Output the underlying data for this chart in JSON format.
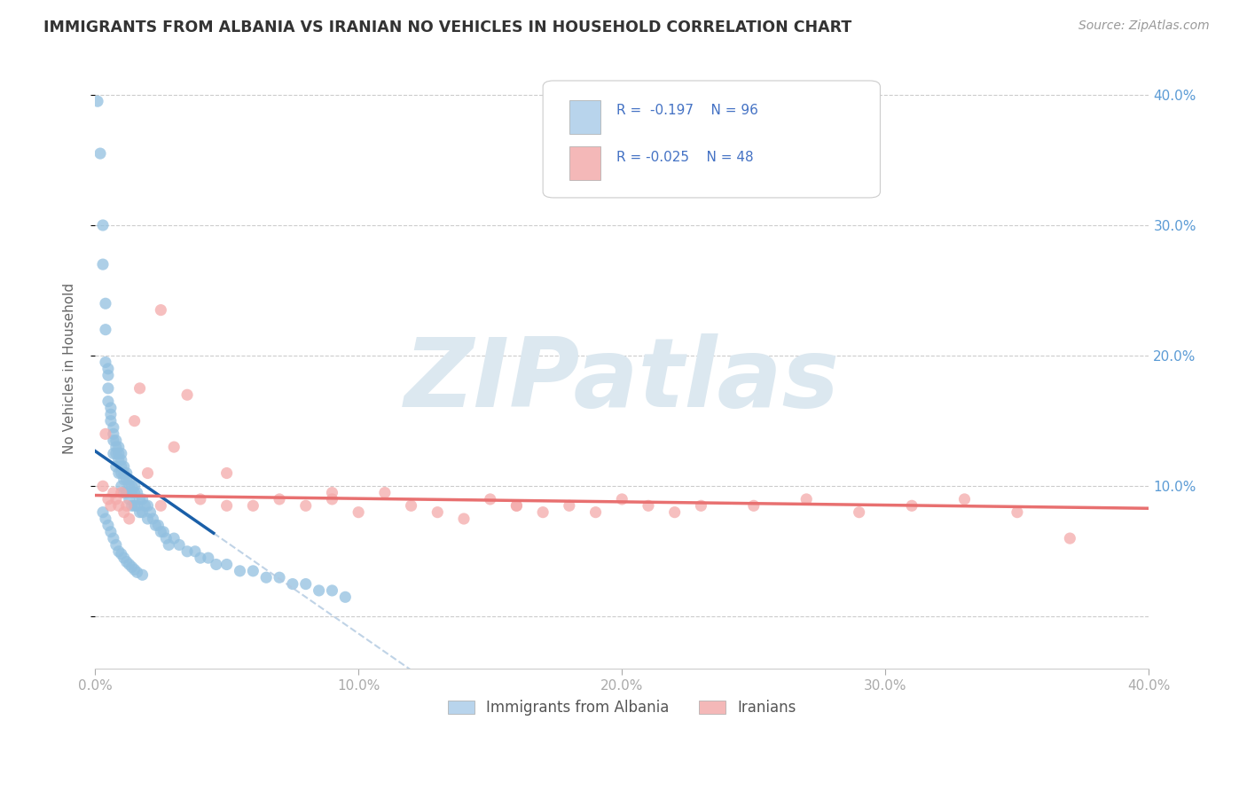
{
  "title": "IMMIGRANTS FROM ALBANIA VS IRANIAN NO VEHICLES IN HOUSEHOLD CORRELATION CHART",
  "source": "Source: ZipAtlas.com",
  "ylabel": "No Vehicles in Household",
  "watermark": "ZIPatlas",
  "legend_label1": "Immigrants from Albania",
  "legend_label2": "Iranians",
  "blue_color": "#92c0e0",
  "pink_color": "#f4aaaa",
  "blue_line_color": "#1a5fa8",
  "blue_dash_color": "#b0c8e0",
  "pink_line_color": "#e87070",
  "xlim": [
    0.0,
    0.4
  ],
  "ylim": [
    -0.04,
    0.42
  ],
  "blue_scatter_x": [
    0.001,
    0.002,
    0.003,
    0.003,
    0.004,
    0.004,
    0.004,
    0.005,
    0.005,
    0.005,
    0.005,
    0.006,
    0.006,
    0.006,
    0.007,
    0.007,
    0.007,
    0.007,
    0.008,
    0.008,
    0.008,
    0.008,
    0.009,
    0.009,
    0.009,
    0.009,
    0.01,
    0.01,
    0.01,
    0.01,
    0.01,
    0.011,
    0.011,
    0.011,
    0.011,
    0.012,
    0.012,
    0.012,
    0.013,
    0.013,
    0.013,
    0.014,
    0.014,
    0.014,
    0.015,
    0.015,
    0.015,
    0.016,
    0.016,
    0.017,
    0.017,
    0.018,
    0.018,
    0.019,
    0.02,
    0.02,
    0.021,
    0.022,
    0.023,
    0.024,
    0.025,
    0.026,
    0.027,
    0.028,
    0.03,
    0.032,
    0.035,
    0.038,
    0.04,
    0.043,
    0.046,
    0.05,
    0.055,
    0.06,
    0.065,
    0.07,
    0.075,
    0.08,
    0.085,
    0.09,
    0.095,
    0.003,
    0.004,
    0.005,
    0.006,
    0.007,
    0.008,
    0.009,
    0.01,
    0.011,
    0.012,
    0.013,
    0.014,
    0.015,
    0.016,
    0.018
  ],
  "blue_scatter_y": [
    0.395,
    0.355,
    0.3,
    0.27,
    0.24,
    0.22,
    0.195,
    0.19,
    0.185,
    0.175,
    0.165,
    0.16,
    0.155,
    0.15,
    0.145,
    0.14,
    0.135,
    0.125,
    0.135,
    0.13,
    0.125,
    0.115,
    0.13,
    0.125,
    0.12,
    0.11,
    0.125,
    0.12,
    0.115,
    0.11,
    0.1,
    0.115,
    0.11,
    0.105,
    0.095,
    0.11,
    0.105,
    0.095,
    0.105,
    0.1,
    0.09,
    0.1,
    0.095,
    0.085,
    0.1,
    0.095,
    0.085,
    0.095,
    0.085,
    0.09,
    0.08,
    0.09,
    0.08,
    0.085,
    0.085,
    0.075,
    0.08,
    0.075,
    0.07,
    0.07,
    0.065,
    0.065,
    0.06,
    0.055,
    0.06,
    0.055,
    0.05,
    0.05,
    0.045,
    0.045,
    0.04,
    0.04,
    0.035,
    0.035,
    0.03,
    0.03,
    0.025,
    0.025,
    0.02,
    0.02,
    0.015,
    0.08,
    0.075,
    0.07,
    0.065,
    0.06,
    0.055,
    0.05,
    0.048,
    0.045,
    0.042,
    0.04,
    0.038,
    0.036,
    0.034,
    0.032
  ],
  "pink_scatter_x": [
    0.003,
    0.004,
    0.005,
    0.006,
    0.007,
    0.008,
    0.009,
    0.01,
    0.011,
    0.012,
    0.013,
    0.015,
    0.017,
    0.02,
    0.025,
    0.03,
    0.035,
    0.04,
    0.05,
    0.06,
    0.07,
    0.08,
    0.09,
    0.1,
    0.11,
    0.12,
    0.13,
    0.14,
    0.15,
    0.16,
    0.17,
    0.18,
    0.19,
    0.2,
    0.21,
    0.22,
    0.23,
    0.25,
    0.27,
    0.29,
    0.31,
    0.33,
    0.35,
    0.37,
    0.025,
    0.05,
    0.09,
    0.16
  ],
  "pink_scatter_y": [
    0.1,
    0.14,
    0.09,
    0.085,
    0.095,
    0.09,
    0.085,
    0.095,
    0.08,
    0.085,
    0.075,
    0.15,
    0.175,
    0.11,
    0.235,
    0.13,
    0.17,
    0.09,
    0.11,
    0.085,
    0.09,
    0.085,
    0.095,
    0.08,
    0.095,
    0.085,
    0.08,
    0.075,
    0.09,
    0.085,
    0.08,
    0.085,
    0.08,
    0.09,
    0.085,
    0.08,
    0.085,
    0.085,
    0.09,
    0.08,
    0.085,
    0.09,
    0.08,
    0.06,
    0.085,
    0.085,
    0.09,
    0.085
  ],
  "background_color": "#ffffff",
  "grid_color": "#cccccc",
  "title_color": "#333333",
  "source_color": "#999999",
  "watermark_color": "#dce8f0",
  "axis_label_color": "#666666",
  "tick_color": "#aaaaaa"
}
